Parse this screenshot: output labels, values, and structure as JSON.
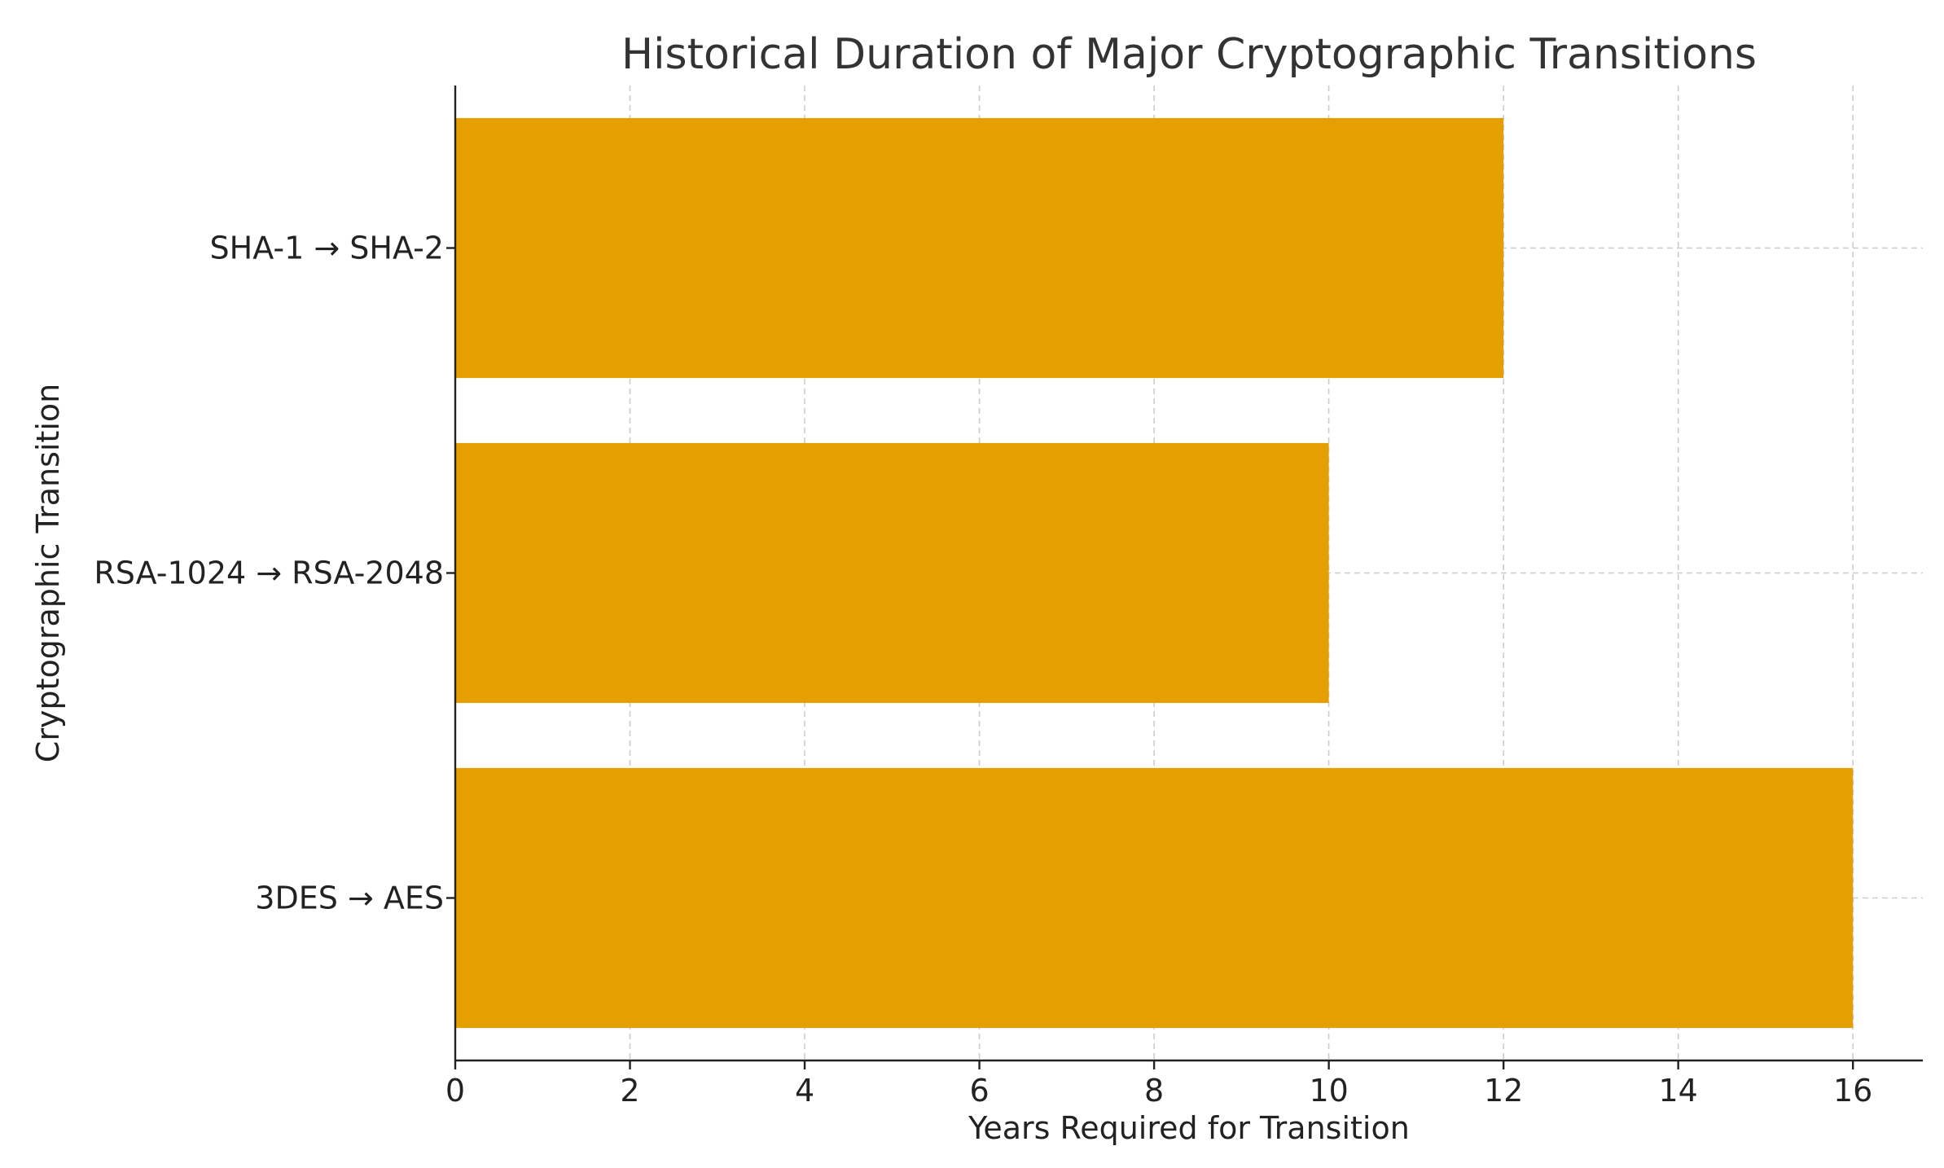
{
  "chart_data": {
    "type": "bar",
    "orientation": "horizontal",
    "title": "Historical Duration of Major Cryptographic Transitions",
    "xlabel": "Years Required for Transition",
    "ylabel": "Cryptographic Transition",
    "categories": [
      "3DES → AES",
      "RSA-1024 → RSA-2048",
      "SHA-1 → SHA-2"
    ],
    "values": [
      16,
      10,
      12
    ],
    "xlim": [
      0,
      16.8
    ],
    "xticks": [
      0,
      2,
      4,
      6,
      8,
      10,
      12,
      14,
      16
    ],
    "bar_color": "#E69F00",
    "grid": true
  }
}
